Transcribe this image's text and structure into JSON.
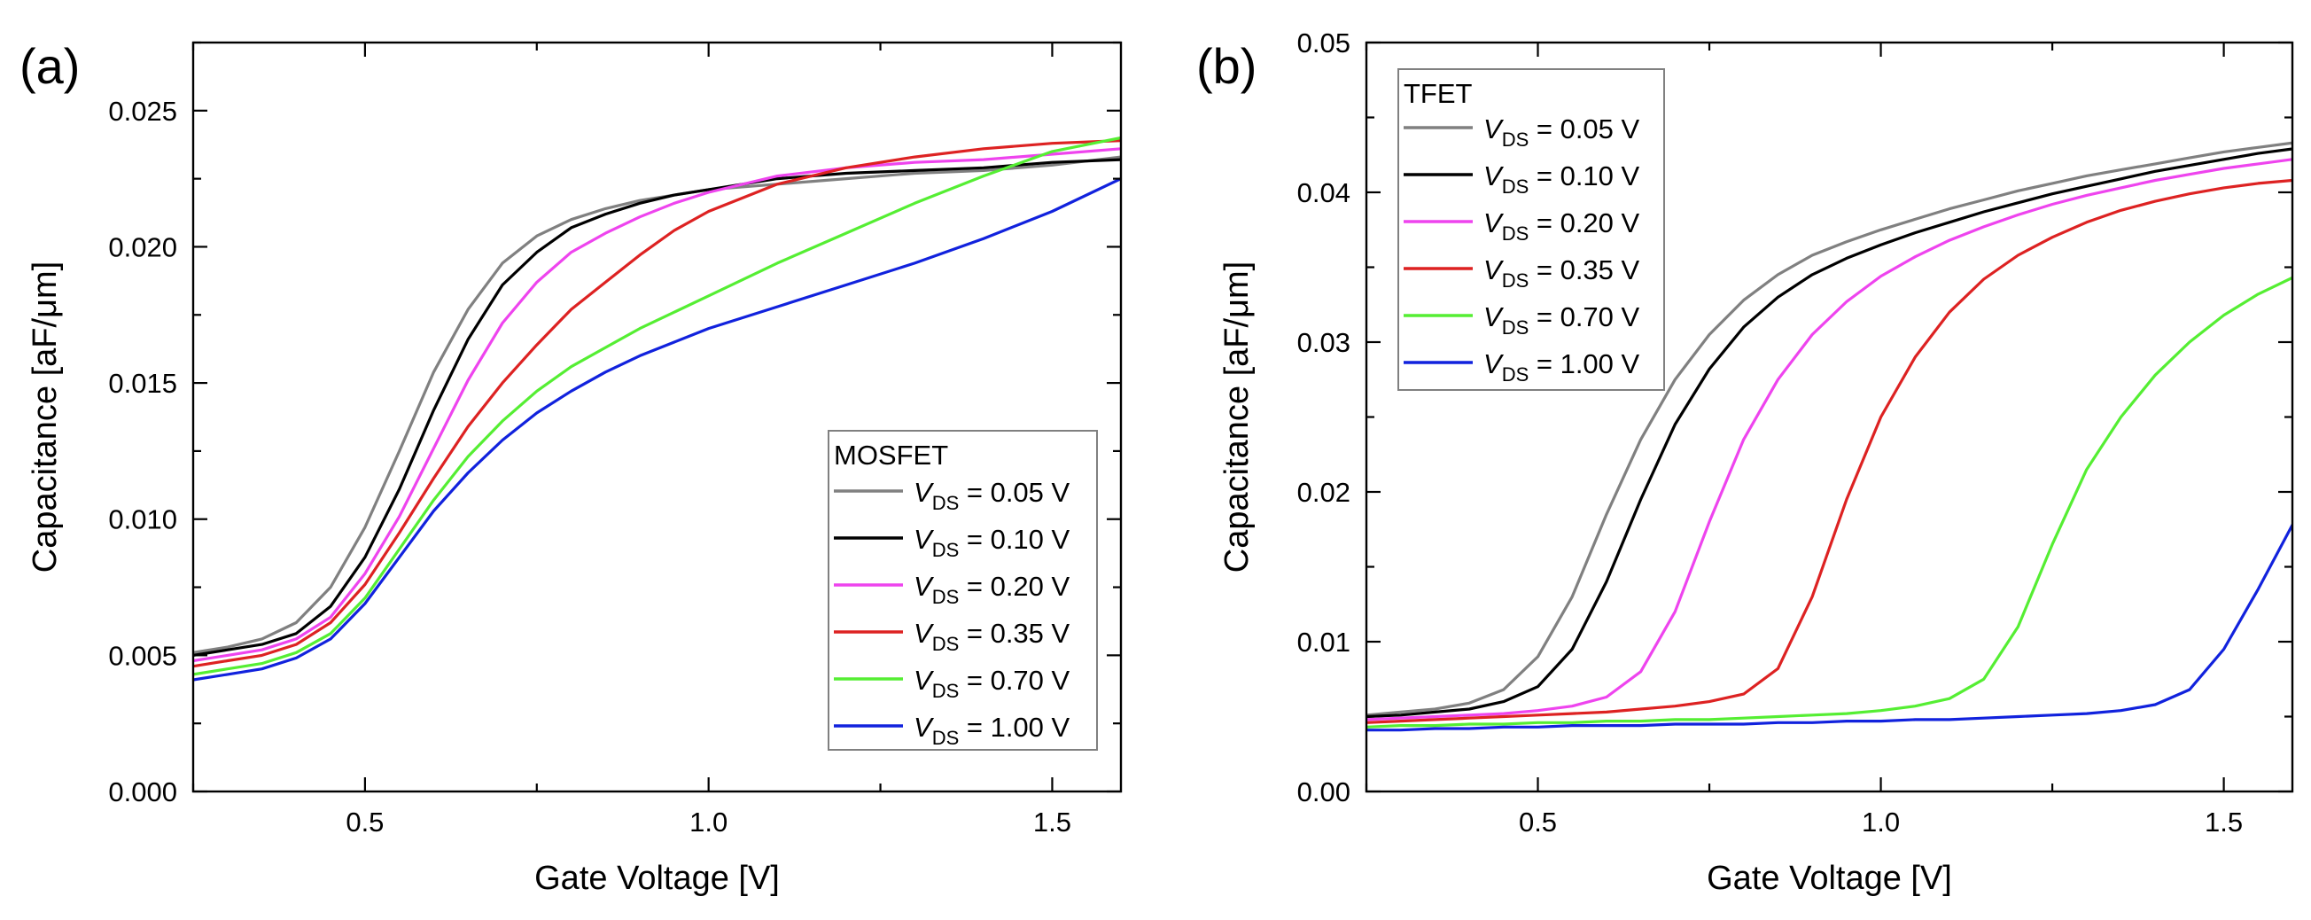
{
  "chart_data": [
    {
      "type": "line",
      "panel_label": "(a)",
      "xlabel": "Gate Voltage [V]",
      "ylabel": "Capacitance [aF/μm]",
      "xlim": [
        0.25,
        1.6
      ],
      "ylim": [
        0.0,
        0.0275
      ],
      "xticks": [
        0.5,
        1.0,
        1.5
      ],
      "xtick_labels": [
        "0.5",
        "1.0",
        "1.5"
      ],
      "yticks": [
        0.0,
        0.005,
        0.01,
        0.015,
        0.02,
        0.025
      ],
      "ytick_labels": [
        "0.000",
        "0.005",
        "0.010",
        "0.015",
        "0.020",
        "0.025"
      ],
      "legend": {
        "title": "MOSFET",
        "placement": "bottom-right"
      },
      "x": [
        0.25,
        0.3,
        0.35,
        0.4,
        0.45,
        0.5,
        0.55,
        0.6,
        0.65,
        0.7,
        0.75,
        0.8,
        0.85,
        0.9,
        0.95,
        1.0,
        1.1,
        1.2,
        1.3,
        1.4,
        1.5,
        1.6
      ],
      "series": [
        {
          "label_var": "V",
          "label_sub": "DS",
          "label_rest": " = 0.05 V",
          "color": "#808080",
          "values": [
            0.0051,
            0.0053,
            0.0056,
            0.0062,
            0.0075,
            0.0097,
            0.0125,
            0.0154,
            0.0177,
            0.0194,
            0.0204,
            0.021,
            0.0214,
            0.0217,
            0.0219,
            0.0221,
            0.0223,
            0.0225,
            0.0227,
            0.0228,
            0.023,
            0.0233
          ]
        },
        {
          "label_var": "V",
          "label_sub": "DS",
          "label_rest": " = 0.10 V",
          "color": "#000000",
          "values": [
            0.005,
            0.0052,
            0.0054,
            0.0058,
            0.0068,
            0.0086,
            0.0111,
            0.014,
            0.0166,
            0.0186,
            0.0198,
            0.0207,
            0.0212,
            0.0216,
            0.0219,
            0.0221,
            0.0225,
            0.0227,
            0.0228,
            0.0229,
            0.0231,
            0.0232
          ]
        },
        {
          "label_var": "V",
          "label_sub": "DS",
          "label_rest": " = 0.20 V",
          "color": "#ee44ee",
          "values": [
            0.0048,
            0.005,
            0.0052,
            0.0056,
            0.0064,
            0.008,
            0.0101,
            0.0126,
            0.0151,
            0.0172,
            0.0187,
            0.0198,
            0.0205,
            0.0211,
            0.0216,
            0.022,
            0.0226,
            0.0229,
            0.0231,
            0.0232,
            0.0234,
            0.0236
          ]
        },
        {
          "label_var": "V",
          "label_sub": "DS",
          "label_rest": " = 0.35 V",
          "color": "#dd2222",
          "values": [
            0.0046,
            0.0048,
            0.005,
            0.0054,
            0.0062,
            0.0076,
            0.0095,
            0.0115,
            0.0134,
            0.015,
            0.0164,
            0.0177,
            0.0187,
            0.0197,
            0.0206,
            0.0213,
            0.0223,
            0.0229,
            0.0233,
            0.0236,
            0.0238,
            0.0239
          ]
        },
        {
          "label_var": "V",
          "label_sub": "DS",
          "label_rest": " = 0.70 V",
          "color": "#55ee33",
          "values": [
            0.0043,
            0.0045,
            0.0047,
            0.0051,
            0.0058,
            0.0071,
            0.0089,
            0.0107,
            0.0123,
            0.0136,
            0.0147,
            0.0156,
            0.0163,
            0.017,
            0.0176,
            0.0182,
            0.0194,
            0.0205,
            0.0216,
            0.0226,
            0.0235,
            0.024
          ]
        },
        {
          "label_var": "V",
          "label_sub": "DS",
          "label_rest": " = 1.00 V",
          "color": "#1122dd",
          "values": [
            0.0041,
            0.0043,
            0.0045,
            0.0049,
            0.0056,
            0.0069,
            0.0086,
            0.0103,
            0.0117,
            0.0129,
            0.0139,
            0.0147,
            0.0154,
            0.016,
            0.0165,
            0.017,
            0.0178,
            0.0186,
            0.0194,
            0.0203,
            0.0213,
            0.0225
          ]
        }
      ]
    },
    {
      "type": "line",
      "panel_label": "(b)",
      "xlabel": "Gate Voltage [V]",
      "ylabel": "Capacitance [aF/μm]",
      "xlim": [
        0.25,
        1.6
      ],
      "ylim": [
        0.0,
        0.05
      ],
      "xticks": [
        0.5,
        1.0,
        1.5
      ],
      "xtick_labels": [
        "0.5",
        "1.0",
        "1.5"
      ],
      "yticks": [
        0.0,
        0.01,
        0.02,
        0.03,
        0.04,
        0.05
      ],
      "ytick_labels": [
        "0.00",
        "0.01",
        "0.02",
        "0.03",
        "0.04",
        "0.05"
      ],
      "legend": {
        "title": "TFET",
        "placement": "top-left"
      },
      "x": [
        0.25,
        0.3,
        0.35,
        0.4,
        0.45,
        0.5,
        0.55,
        0.6,
        0.65,
        0.7,
        0.75,
        0.8,
        0.85,
        0.9,
        0.95,
        1.0,
        1.05,
        1.1,
        1.15,
        1.2,
        1.25,
        1.3,
        1.35,
        1.4,
        1.45,
        1.5,
        1.55,
        1.6
      ],
      "series": [
        {
          "label_var": "V",
          "label_sub": "DS",
          "label_rest": " = 0.05 V",
          "color": "#808080",
          "values": [
            0.0051,
            0.0053,
            0.0055,
            0.0059,
            0.0068,
            0.009,
            0.013,
            0.0185,
            0.0235,
            0.0275,
            0.0305,
            0.0328,
            0.0345,
            0.0358,
            0.0367,
            0.0375,
            0.0382,
            0.0389,
            0.0395,
            0.0401,
            0.0406,
            0.0411,
            0.0415,
            0.0419,
            0.0423,
            0.0427,
            0.043,
            0.0433
          ]
        },
        {
          "label_var": "V",
          "label_sub": "DS",
          "label_rest": " = 0.10 V",
          "color": "#000000",
          "values": [
            0.005,
            0.0051,
            0.0053,
            0.0055,
            0.006,
            0.007,
            0.0095,
            0.014,
            0.0195,
            0.0245,
            0.0282,
            0.031,
            0.033,
            0.0345,
            0.0356,
            0.0365,
            0.0373,
            0.038,
            0.0387,
            0.0393,
            0.0399,
            0.0404,
            0.0409,
            0.0414,
            0.0418,
            0.0422,
            0.0426,
            0.0429
          ]
        },
        {
          "label_var": "V",
          "label_sub": "DS",
          "label_rest": " = 0.20 V",
          "color": "#ee44ee",
          "values": [
            0.0048,
            0.0049,
            0.005,
            0.0051,
            0.0052,
            0.0054,
            0.0057,
            0.0063,
            0.008,
            0.012,
            0.018,
            0.0235,
            0.0275,
            0.0305,
            0.0327,
            0.0344,
            0.0357,
            0.0368,
            0.0377,
            0.0385,
            0.0392,
            0.0398,
            0.0403,
            0.0408,
            0.0412,
            0.0416,
            0.0419,
            0.0422
          ]
        },
        {
          "label_var": "V",
          "label_sub": "DS",
          "label_rest": " = 0.35 V",
          "color": "#dd2222",
          "values": [
            0.0046,
            0.0047,
            0.0048,
            0.0049,
            0.005,
            0.0051,
            0.0052,
            0.0053,
            0.0055,
            0.0057,
            0.006,
            0.0065,
            0.0082,
            0.013,
            0.0195,
            0.025,
            0.029,
            0.032,
            0.0342,
            0.0358,
            0.037,
            0.038,
            0.0388,
            0.0394,
            0.0399,
            0.0403,
            0.0406,
            0.0408
          ]
        },
        {
          "label_var": "V",
          "label_sub": "DS",
          "label_rest": " = 0.70 V",
          "color": "#55ee33",
          "values": [
            0.0043,
            0.0044,
            0.0044,
            0.0045,
            0.0045,
            0.0046,
            0.0046,
            0.0047,
            0.0047,
            0.0048,
            0.0048,
            0.0049,
            0.005,
            0.0051,
            0.0052,
            0.0054,
            0.0057,
            0.0062,
            0.0075,
            0.011,
            0.0165,
            0.0215,
            0.025,
            0.0278,
            0.03,
            0.0318,
            0.0332,
            0.0343
          ]
        },
        {
          "label_var": "V",
          "label_sub": "DS",
          "label_rest": " = 1.00 V",
          "color": "#1122dd",
          "values": [
            0.0041,
            0.0041,
            0.0042,
            0.0042,
            0.0043,
            0.0043,
            0.0044,
            0.0044,
            0.0044,
            0.0045,
            0.0045,
            0.0045,
            0.0046,
            0.0046,
            0.0047,
            0.0047,
            0.0048,
            0.0048,
            0.0049,
            0.005,
            0.0051,
            0.0052,
            0.0054,
            0.0058,
            0.0068,
            0.0095,
            0.0135,
            0.0178
          ]
        }
      ]
    }
  ]
}
